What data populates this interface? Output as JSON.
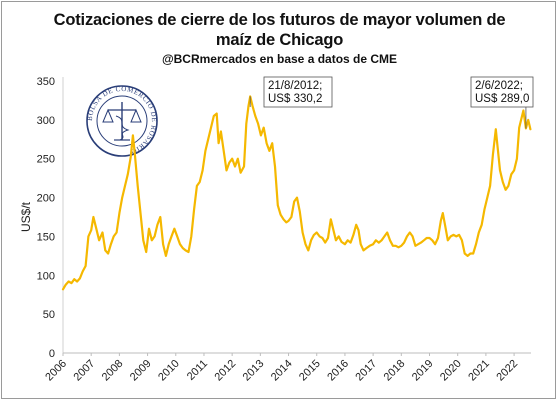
{
  "chart_data": {
    "type": "line",
    "title": "Cotizaciones de cierre de los futuros de mayor volumen de maíz de Chicago",
    "title_lines": [
      "Cotizaciones de cierre de los futuros de mayor volumen de",
      "maíz de Chicago"
    ],
    "subtitle": "@BCRmercados en base a datos de CME",
    "xlabel": "",
    "ylabel": "US$/t",
    "ylim": [
      0,
      350
    ],
    "yticks": [
      0,
      50,
      100,
      150,
      200,
      250,
      300,
      350
    ],
    "xlim": [
      2006,
      2022.6
    ],
    "xticks": [
      "2006",
      "2007",
      "2008",
      "2009",
      "2010",
      "2011",
      "2012",
      "2013",
      "2014",
      "2015",
      "2016",
      "2017",
      "2018",
      "2019",
      "2020",
      "2021",
      "2022"
    ],
    "grid": false,
    "color": "#F5B800",
    "series": [
      {
        "name": "",
        "points": [
          [
            2006.0,
            82
          ],
          [
            2006.1,
            88
          ],
          [
            2006.2,
            92
          ],
          [
            2006.3,
            90
          ],
          [
            2006.4,
            95
          ],
          [
            2006.5,
            92
          ],
          [
            2006.6,
            96
          ],
          [
            2006.7,
            105
          ],
          [
            2006.8,
            112
          ],
          [
            2006.9,
            150
          ],
          [
            2007.0,
            158
          ],
          [
            2007.08,
            175
          ],
          [
            2007.18,
            160
          ],
          [
            2007.28,
            145
          ],
          [
            2007.4,
            155
          ],
          [
            2007.5,
            132
          ],
          [
            2007.6,
            128
          ],
          [
            2007.7,
            140
          ],
          [
            2007.8,
            150
          ],
          [
            2007.9,
            155
          ],
          [
            2008.0,
            180
          ],
          [
            2008.1,
            200
          ],
          [
            2008.2,
            215
          ],
          [
            2008.3,
            230
          ],
          [
            2008.4,
            252
          ],
          [
            2008.48,
            280
          ],
          [
            2008.55,
            255
          ],
          [
            2008.65,
            215
          ],
          [
            2008.75,
            180
          ],
          [
            2008.85,
            145
          ],
          [
            2008.95,
            130
          ],
          [
            2009.05,
            160
          ],
          [
            2009.15,
            145
          ],
          [
            2009.25,
            150
          ],
          [
            2009.35,
            165
          ],
          [
            2009.45,
            175
          ],
          [
            2009.55,
            140
          ],
          [
            2009.65,
            125
          ],
          [
            2009.75,
            140
          ],
          [
            2009.85,
            150
          ],
          [
            2009.95,
            160
          ],
          [
            2010.05,
            150
          ],
          [
            2010.15,
            140
          ],
          [
            2010.25,
            135
          ],
          [
            2010.35,
            132
          ],
          [
            2010.45,
            130
          ],
          [
            2010.55,
            150
          ],
          [
            2010.65,
            185
          ],
          [
            2010.75,
            215
          ],
          [
            2010.85,
            220
          ],
          [
            2010.95,
            235
          ],
          [
            2011.05,
            260
          ],
          [
            2011.15,
            275
          ],
          [
            2011.25,
            290
          ],
          [
            2011.35,
            305
          ],
          [
            2011.45,
            308
          ],
          [
            2011.52,
            270
          ],
          [
            2011.6,
            285
          ],
          [
            2011.7,
            260
          ],
          [
            2011.8,
            235
          ],
          [
            2011.9,
            245
          ],
          [
            2012.0,
            250
          ],
          [
            2012.1,
            240
          ],
          [
            2012.2,
            250
          ],
          [
            2012.3,
            232
          ],
          [
            2012.42,
            240
          ],
          [
            2012.5,
            295
          ],
          [
            2012.58,
            318
          ],
          [
            2012.64,
            330.2
          ],
          [
            2012.72,
            318
          ],
          [
            2012.82,
            305
          ],
          [
            2012.92,
            295
          ],
          [
            2013.02,
            280
          ],
          [
            2013.12,
            290
          ],
          [
            2013.22,
            270
          ],
          [
            2013.32,
            260
          ],
          [
            2013.42,
            270
          ],
          [
            2013.52,
            240
          ],
          [
            2013.62,
            190
          ],
          [
            2013.72,
            178
          ],
          [
            2013.82,
            172
          ],
          [
            2013.92,
            168
          ],
          [
            2014.0,
            170
          ],
          [
            2014.1,
            175
          ],
          [
            2014.2,
            195
          ],
          [
            2014.3,
            200
          ],
          [
            2014.4,
            182
          ],
          [
            2014.5,
            155
          ],
          [
            2014.6,
            140
          ],
          [
            2014.7,
            132
          ],
          [
            2014.8,
            145
          ],
          [
            2014.9,
            152
          ],
          [
            2015.0,
            155
          ],
          [
            2015.1,
            150
          ],
          [
            2015.2,
            148
          ],
          [
            2015.3,
            142
          ],
          [
            2015.4,
            148
          ],
          [
            2015.5,
            172
          ],
          [
            2015.58,
            160
          ],
          [
            2015.68,
            145
          ],
          [
            2015.78,
            150
          ],
          [
            2015.88,
            143
          ],
          [
            2016.0,
            140
          ],
          [
            2016.1,
            145
          ],
          [
            2016.2,
            142
          ],
          [
            2016.3,
            152
          ],
          [
            2016.4,
            165
          ],
          [
            2016.48,
            158
          ],
          [
            2016.56,
            140
          ],
          [
            2016.66,
            132
          ],
          [
            2016.76,
            135
          ],
          [
            2016.88,
            138
          ],
          [
            2017.0,
            140
          ],
          [
            2017.1,
            145
          ],
          [
            2017.2,
            142
          ],
          [
            2017.3,
            145
          ],
          [
            2017.4,
            150
          ],
          [
            2017.5,
            155
          ],
          [
            2017.6,
            145
          ],
          [
            2017.7,
            138
          ],
          [
            2017.8,
            138
          ],
          [
            2017.9,
            136
          ],
          [
            2018.0,
            138
          ],
          [
            2018.1,
            142
          ],
          [
            2018.2,
            150
          ],
          [
            2018.3,
            155
          ],
          [
            2018.4,
            150
          ],
          [
            2018.5,
            138
          ],
          [
            2018.6,
            140
          ],
          [
            2018.7,
            142
          ],
          [
            2018.8,
            145
          ],
          [
            2018.9,
            148
          ],
          [
            2019.0,
            148
          ],
          [
            2019.1,
            145
          ],
          [
            2019.2,
            140
          ],
          [
            2019.3,
            148
          ],
          [
            2019.4,
            170
          ],
          [
            2019.47,
            180
          ],
          [
            2019.55,
            165
          ],
          [
            2019.65,
            145
          ],
          [
            2019.75,
            150
          ],
          [
            2019.85,
            152
          ],
          [
            2019.95,
            150
          ],
          [
            2020.05,
            152
          ],
          [
            2020.15,
            145
          ],
          [
            2020.25,
            128
          ],
          [
            2020.35,
            125
          ],
          [
            2020.45,
            128
          ],
          [
            2020.55,
            128
          ],
          [
            2020.65,
            140
          ],
          [
            2020.75,
            155
          ],
          [
            2020.85,
            165
          ],
          [
            2020.95,
            185
          ],
          [
            2021.05,
            200
          ],
          [
            2021.15,
            215
          ],
          [
            2021.25,
            255
          ],
          [
            2021.35,
            288
          ],
          [
            2021.4,
            270
          ],
          [
            2021.5,
            235
          ],
          [
            2021.6,
            220
          ],
          [
            2021.7,
            210
          ],
          [
            2021.8,
            215
          ],
          [
            2021.9,
            230
          ],
          [
            2022.0,
            235
          ],
          [
            2022.1,
            250
          ],
          [
            2022.18,
            290
          ],
          [
            2022.25,
            300
          ],
          [
            2022.33,
            312
          ],
          [
            2022.42,
            289
          ],
          [
            2022.5,
            300
          ],
          [
            2022.58,
            288
          ]
        ]
      }
    ],
    "annotations": [
      {
        "x": 2012.64,
        "y": 330.2,
        "lines": [
          "21/8/2012;",
          "US$ 330,2"
        ]
      },
      {
        "x": 2022.42,
        "y": 289.0,
        "lines": [
          "2/6/2022;",
          "US$ 289,0"
        ]
      }
    ]
  },
  "logo": {
    "text": "BOLSA DE COMERCIO DE ROSARIO",
    "color": "#2a3e78"
  }
}
